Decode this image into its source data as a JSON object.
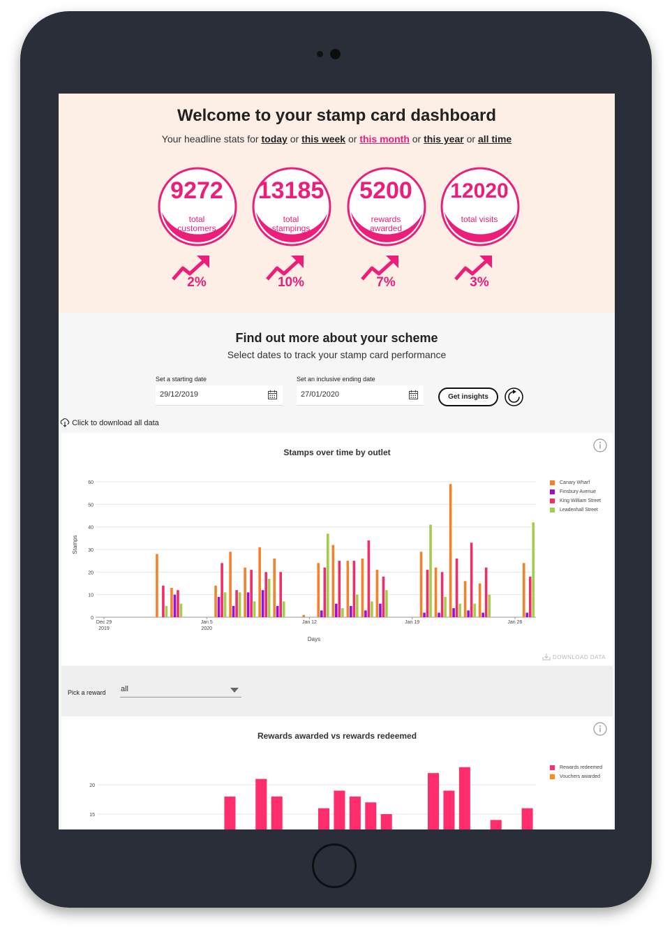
{
  "hero": {
    "title": "Welcome to your stamp card dashboard",
    "intro": "Your headline stats for",
    "or": "or",
    "periods": [
      "today",
      "this week",
      "this month",
      "this year",
      "all time"
    ],
    "active_period": "this month",
    "stats": [
      {
        "value": "9272",
        "label1": "total",
        "label2": "customers",
        "change": "2%"
      },
      {
        "value": "13185",
        "label1": "total",
        "label2": "stampings",
        "change": "10%"
      },
      {
        "value": "5200",
        "label1": "rewards",
        "label2": "awarded",
        "change": "7%"
      },
      {
        "value": "12020",
        "label1": "total visits",
        "label2": "",
        "change": "3%"
      }
    ]
  },
  "scheme": {
    "title": "Find out more about your scheme",
    "subtitle": "Select dates to track your stamp card performance",
    "start_label": "Set a starting date",
    "start_value": "29/12/2019",
    "end_label": "Set an inclusive ending date",
    "end_value": "27/01/2020",
    "insights_button": "Get insights",
    "download_all": "Click to download all data"
  },
  "stamps_chart": {
    "download_label": "DOWNLOAD DATA"
  },
  "reward_picker": {
    "label": "Pick a reward",
    "value": "all"
  },
  "colors": {
    "accent": "#ec1e79",
    "canary": "#f5822a",
    "finsbury": "#9b0fd6",
    "king": "#ef2d66",
    "leadenhall": "#a3cd4a",
    "rewards": "#ff2d6b",
    "vouchers": "#ff8a1e"
  },
  "chart_data": [
    {
      "type": "bar",
      "title": "Stamps over time by outlet",
      "xlabel": "Days",
      "ylabel": "Stamps",
      "ylim": [
        0,
        60
      ],
      "yticks": [
        0,
        10,
        20,
        30,
        40,
        50,
        60
      ],
      "x_tick_labels": [
        {
          "day": 0,
          "l1": "Dec 29",
          "l2": "2019"
        },
        {
          "day": 7,
          "l1": "Jan 5",
          "l2": "2020"
        },
        {
          "day": 14,
          "l1": "Jan 12",
          "l2": ""
        },
        {
          "day": 21,
          "l1": "Jan 19",
          "l2": ""
        },
        {
          "day": 28,
          "l1": "Jan 26",
          "l2": ""
        }
      ],
      "days": 30,
      "series": [
        {
          "name": "Canary Wharf",
          "color": "#f5822a",
          "values": [
            0,
            0,
            0,
            0,
            28,
            13,
            0,
            0,
            14,
            29,
            22,
            31,
            26,
            0,
            1,
            24,
            32,
            25,
            26,
            21,
            0,
            0,
            29,
            22,
            59,
            16,
            15,
            0,
            0,
            24
          ]
        },
        {
          "name": "Finsbury Avenue",
          "color": "#9b0fd6",
          "values": [
            0,
            0,
            0,
            0,
            0,
            10,
            0,
            0,
            9,
            5,
            11,
            12,
            5,
            0,
            0,
            3,
            6,
            5,
            3,
            6,
            0,
            0,
            2,
            2,
            4,
            3,
            2,
            0,
            0,
            2
          ]
        },
        {
          "name": "King William Street",
          "color": "#ef2d66",
          "values": [
            0,
            0,
            0,
            0,
            14,
            12,
            0,
            0,
            24,
            12,
            21,
            20,
            20,
            0,
            0,
            22,
            25,
            25,
            34,
            18,
            0,
            0,
            21,
            20,
            26,
            33,
            22,
            0,
            0,
            18
          ]
        },
        {
          "name": "Leadenhall Street",
          "color": "#a3cd4a",
          "values": [
            0,
            0,
            0,
            0,
            5,
            6,
            0,
            0,
            11,
            11,
            7,
            17,
            7,
            0,
            0,
            37,
            4,
            10,
            7,
            12,
            0,
            0,
            41,
            9,
            6,
            6,
            10,
            0,
            0,
            42
          ]
        }
      ]
    },
    {
      "type": "bar",
      "title": "Rewards awarded vs rewards redeemed",
      "yticks": [
        15,
        20
      ],
      "series": [
        {
          "name": "Rewards redeemed",
          "color": "#ff2d6b",
          "values": [
            0,
            0,
            0,
            0,
            0,
            0,
            0,
            0,
            18,
            0,
            21,
            18,
            0,
            0,
            16,
            19,
            18,
            17,
            15,
            0,
            0,
            22,
            19,
            23,
            0,
            14,
            0,
            16
          ]
        },
        {
          "name": "Vouchers awarded",
          "color": "#ff8a1e",
          "values": []
        }
      ]
    }
  ]
}
